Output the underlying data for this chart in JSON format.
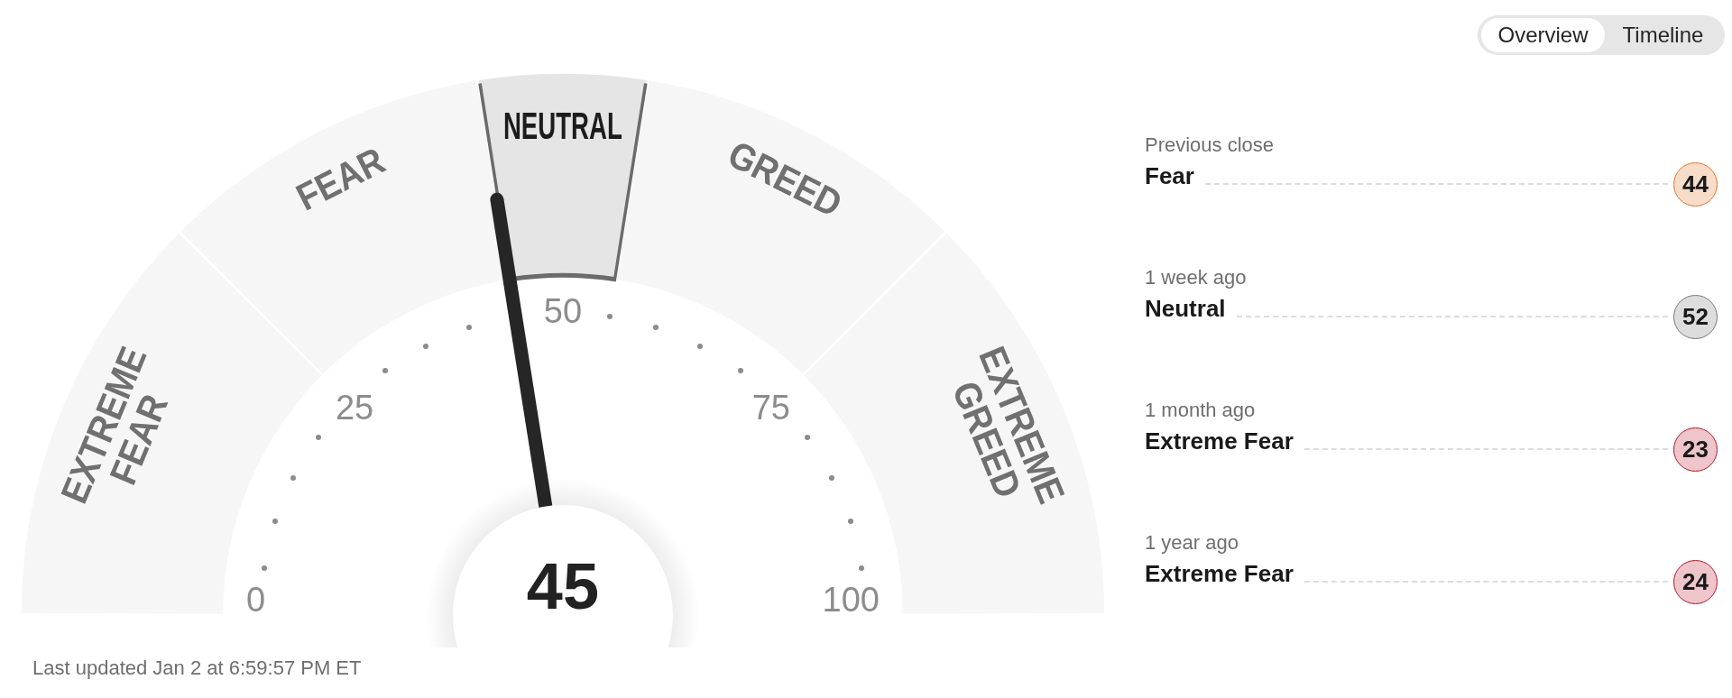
{
  "chart_data": [
    {
      "type": "donut",
      "categories": [
        "EXTREME FEAR",
        "FEAR",
        "NEUTRAL",
        "GREED",
        "EXTREME GREED"
      ],
      "values": [
        25,
        20,
        10,
        20,
        25
      ],
      "colors": [
        "#f6f6f6",
        "#f6f6f6",
        "#e5e5e5",
        "#f6f6f6",
        "#f6f6f6"
      ],
      "needle": "NEUTRAL",
      "annotations": [
        "0",
        "25",
        "50",
        "75",
        "100",
        {
          "text": "45",
          "x": "NEUTRAL"
        },
        "Last updated Jan 2 at 6:59:57 PM ET"
      ]
    },
    {
      "type": "other",
      "annotations": [
        "Overview",
        "Timeline"
      ]
    },
    {
      "type": "other",
      "categories": [
        "Previous close",
        "1 week ago",
        "1 month ago",
        "1 year ago"
      ],
      "values": [
        44,
        52,
        23,
        24
      ],
      "colors": [
        "#e3732a",
        "#777777",
        "#b5152d",
        "#b5152d"
      ],
      "data_labels": true,
      "annotations": [
        "Fear",
        "Neutral",
        "Extreme Fear",
        "Extreme Fear"
      ]
    }
  ]
}
